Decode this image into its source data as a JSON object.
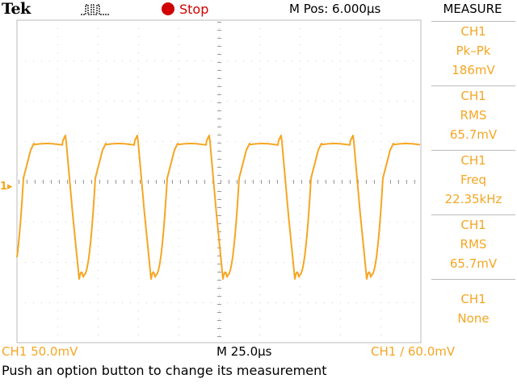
{
  "header": {
    "brand": "Tek",
    "acquisition_icon": "pulse-waveform-icon",
    "run_status": "Stop",
    "run_status_color": "#d00000",
    "horizontal_position": "M Pos: 6.000µs"
  },
  "measure": {
    "title": "MEASURE",
    "slots": [
      {
        "source": "CH1",
        "type": "Pk–Pk",
        "value": "186mV"
      },
      {
        "source": "CH1",
        "type": "RMS",
        "value": "65.7mV"
      },
      {
        "source": "CH1",
        "type": "Freq",
        "value": "22.35kHz"
      },
      {
        "source": "CH1",
        "type": "RMS",
        "value": "65.7mV"
      },
      {
        "source": "CH1",
        "type": "None",
        "value": ""
      }
    ]
  },
  "display": {
    "trace_color": "#f5a623",
    "channel_marker": "1",
    "graticule_color": "#cccccc"
  },
  "footer": {
    "channel_scale": "CH1  50.0mV",
    "time_scale": "M 25.0µs",
    "trigger": "CH1 ∕ 60.0mV",
    "status_message": "Push an option button to change its measurement"
  }
}
